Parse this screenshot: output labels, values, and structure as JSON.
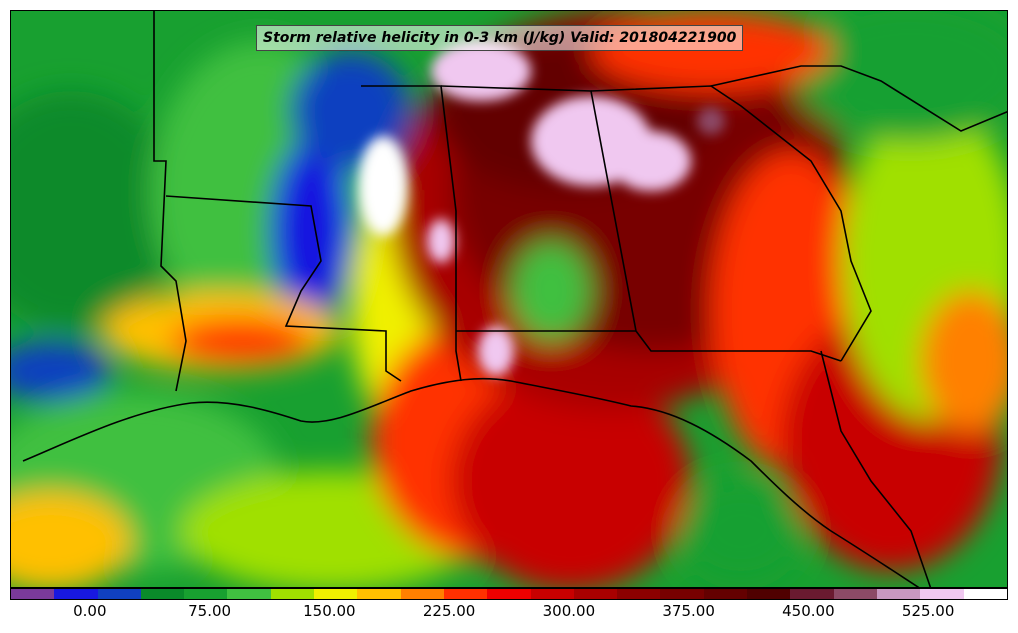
{
  "title": "Storm relative helicity in 0-3 km (J/kg) Valid: 201804221900",
  "colorbar": {
    "colors": [
      "#7a3a9a",
      "#1818e0",
      "#1040c0",
      "#0a8a2a",
      "#18a030",
      "#40c040",
      "#a0e000",
      "#f0f000",
      "#ffc000",
      "#ff8000",
      "#ff3000",
      "#ee0000",
      "#c80000",
      "#a80000",
      "#8c0000",
      "#780000",
      "#640000",
      "#500000",
      "#6a1a30",
      "#8c4a66",
      "#c898c0",
      "#f0c8f0",
      "#ffffff"
    ],
    "tick_labels": [
      "0.00",
      "75.00",
      "150.00",
      "225.00",
      "300.00",
      "375.00",
      "450.00",
      "525.00"
    ],
    "tick_values": [
      0,
      75,
      150,
      225,
      300,
      375,
      450,
      525
    ],
    "range": [
      -50,
      575
    ]
  }
}
